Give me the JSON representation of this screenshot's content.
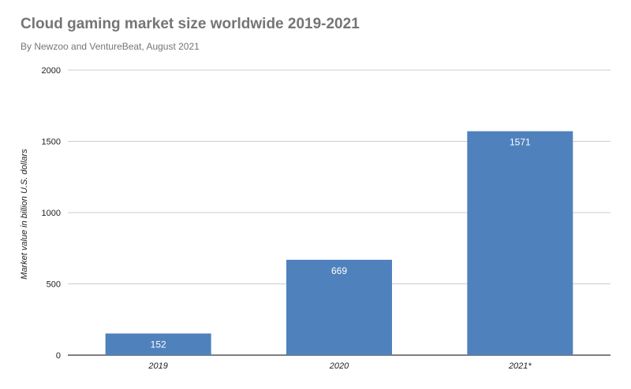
{
  "chart_data": {
    "type": "bar",
    "title": "Cloud gaming market size worldwide 2019-2021",
    "subtitle": "By Newzoo and VentureBeat, August 2021",
    "ylabel": "Market value in billion U.S. dollars",
    "xlabel": "",
    "categories": [
      "2019",
      "2020",
      "2021*"
    ],
    "values": [
      152,
      669,
      1571
    ],
    "ylim": [
      0,
      2000
    ],
    "yticks": [
      0,
      500,
      1000,
      1500,
      2000
    ],
    "grid": true,
    "bar_color": "#4f81bd",
    "data_label_color": "#ffffff"
  }
}
